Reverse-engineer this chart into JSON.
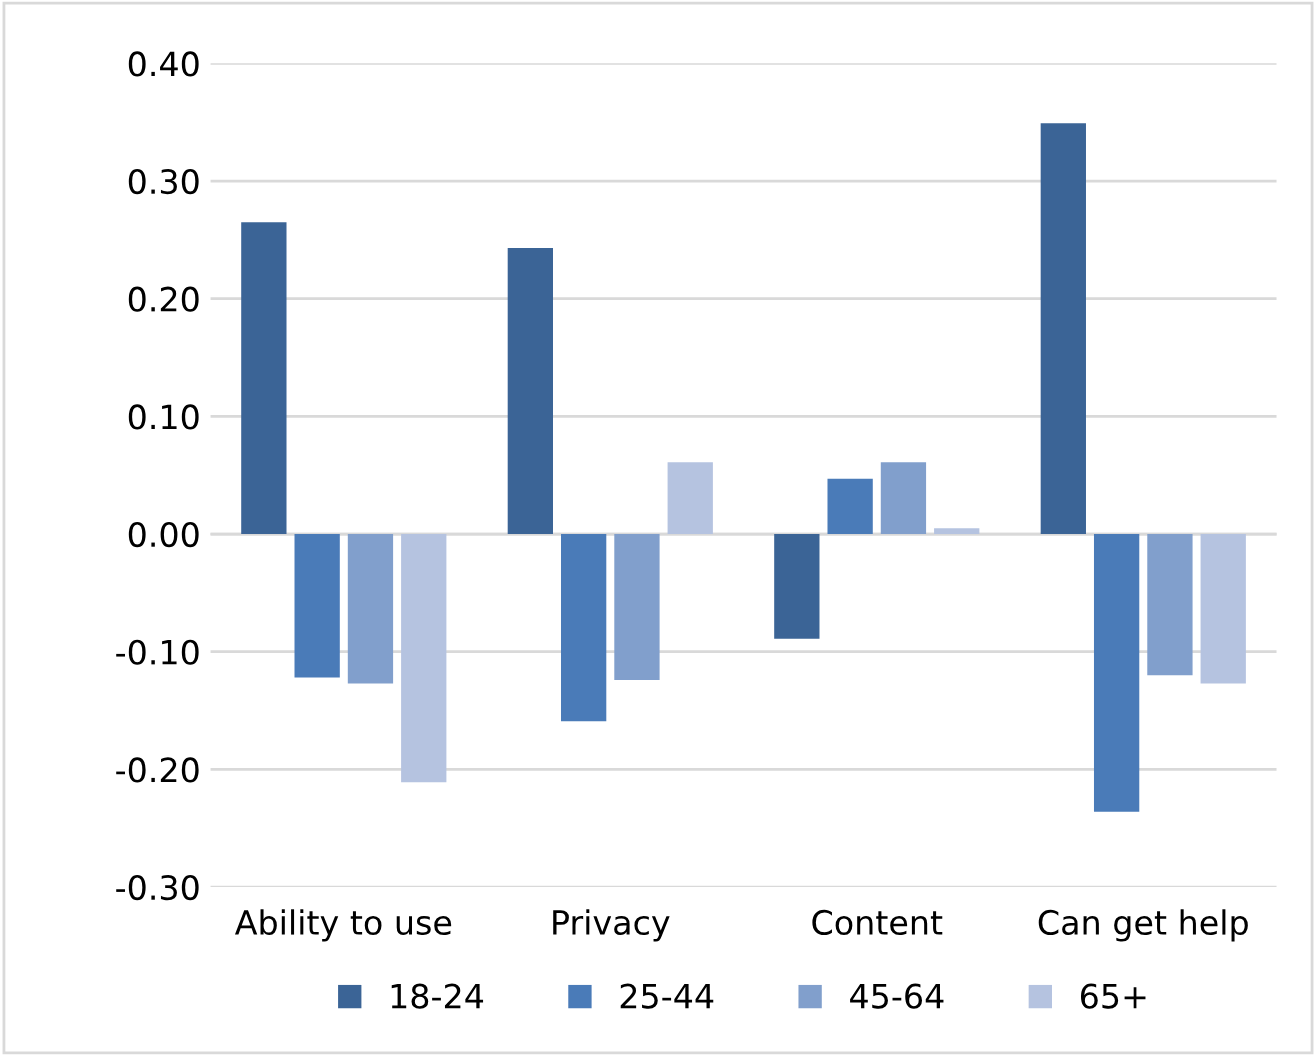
{
  "chart_data": {
    "type": "bar",
    "categories": [
      "Ability to use",
      "Privacy",
      "Content",
      "Can get help"
    ],
    "series": [
      {
        "name": "18-24",
        "color": "#3b6496",
        "values": [
          0.265,
          0.243,
          -0.089,
          0.349
        ]
      },
      {
        "name": "25-44",
        "color": "#4a7bb8",
        "values": [
          -0.122,
          -0.159,
          0.047,
          -0.236
        ]
      },
      {
        "name": "45-64",
        "color": "#819fcc",
        "values": [
          -0.127,
          -0.124,
          0.061,
          -0.12
        ]
      },
      {
        "name": "65+",
        "color": "#b5c3e0",
        "values": [
          -0.211,
          0.061,
          0.005,
          -0.127
        ]
      }
    ],
    "ylim": [
      -0.3,
      0.4
    ],
    "yticks": [
      {
        "value": -0.3,
        "label": "-0.30"
      },
      {
        "value": -0.2,
        "label": "-0.20"
      },
      {
        "value": -0.1,
        "label": "-0.10"
      },
      {
        "value": 0.0,
        "label": "0.00"
      },
      {
        "value": 0.1,
        "label": "0.10"
      },
      {
        "value": 0.2,
        "label": "0.20"
      },
      {
        "value": 0.3,
        "label": "0.30"
      },
      {
        "value": 0.4,
        "label": "0.40"
      }
    ],
    "grid": "y",
    "legend": "bottom"
  }
}
